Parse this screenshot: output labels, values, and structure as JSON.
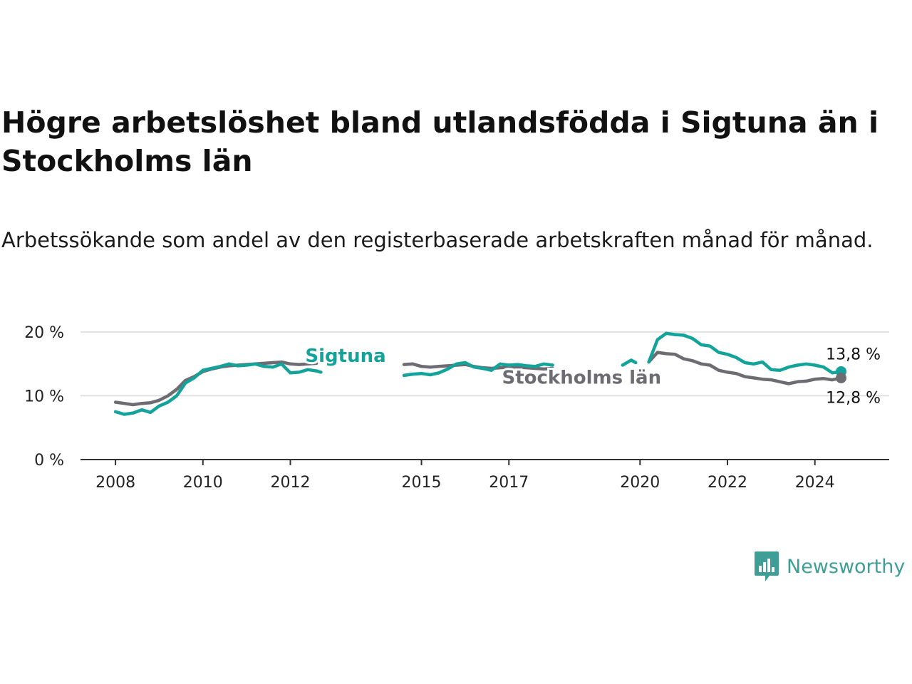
{
  "title": "Högre arbetslöshet bland utlandsfödda i Sigtuna än i Stockholms län",
  "subtitle": "Arbetssökande som andel av den registerbaserade arbetskraften månad för månad.",
  "brand": {
    "name": "Newsworthy"
  },
  "colors": {
    "sigtuna": "#14a39a",
    "stockholm": "#6e6c73",
    "grid": "#d9d9d9",
    "axis": "#333333"
  },
  "chart_data": {
    "type": "line",
    "title": "Högre arbetslöshet bland utlandsfödda i Sigtuna än i Stockholms län",
    "xlabel": "",
    "ylabel": "",
    "ylim": [
      0,
      20
    ],
    "xlim": [
      2007.2,
      2025.7
    ],
    "y_ticks": [
      0,
      10,
      20
    ],
    "y_tick_labels": [
      "0 %",
      "10 %",
      "20 %"
    ],
    "x_ticks": [
      2008,
      2010,
      2012,
      2015,
      2017,
      2020,
      2022,
      2024
    ],
    "x_tick_labels": [
      "2008",
      "2010",
      "2012",
      "2015",
      "2017",
      "2020",
      "2022",
      "2024"
    ],
    "grid": true,
    "series": [
      {
        "name": "Sigtuna",
        "color": "#14a39a",
        "end_label": "13,8 %",
        "segments": [
          {
            "x": [
              2008.0,
              2008.2,
              2008.4,
              2008.6,
              2008.8,
              2009.0,
              2009.2,
              2009.4,
              2009.6,
              2009.8,
              2010.0,
              2010.2,
              2010.4,
              2010.6,
              2010.8,
              2011.0,
              2011.2,
              2011.4,
              2011.6,
              2011.8,
              2012.0,
              2012.2,
              2012.4,
              2012.6,
              2012.7
            ],
            "y": [
              7.5,
              7.1,
              7.3,
              7.8,
              7.4,
              8.4,
              9.0,
              10.0,
              12.0,
              12.8,
              14.0,
              14.3,
              14.6,
              15.0,
              14.7,
              14.8,
              15.0,
              14.6,
              14.5,
              15.0,
              13.6,
              13.7,
              14.1,
              13.9,
              13.7
            ]
          },
          {
            "x": [
              2014.6,
              2014.8,
              2015.0,
              2015.2,
              2015.4,
              2015.6,
              2015.8,
              2016.0,
              2016.2,
              2016.4,
              2016.6,
              2016.8,
              2017.0,
              2017.2,
              2017.4,
              2017.6,
              2017.8,
              2018.0
            ],
            "y": [
              13.2,
              13.4,
              13.5,
              13.3,
              13.6,
              14.2,
              15.0,
              15.2,
              14.5,
              14.3,
              14.0,
              15.0,
              14.8,
              14.9,
              14.7,
              14.6,
              15.0,
              14.8
            ]
          },
          {
            "x": [
              2019.6,
              2019.8,
              2019.9
            ],
            "y": [
              14.8,
              15.6,
              15.2
            ]
          },
          {
            "x": [
              2020.2,
              2020.4,
              2020.6,
              2020.8,
              2021.0,
              2021.2,
              2021.4,
              2021.6,
              2021.8,
              2022.0,
              2022.2,
              2022.4,
              2022.6,
              2022.8,
              2023.0,
              2023.2,
              2023.4,
              2023.6,
              2023.8,
              2024.0,
              2024.2,
              2024.4,
              2024.6
            ],
            "y": [
              15.3,
              18.8,
              19.8,
              19.6,
              19.5,
              19.0,
              18.0,
              17.8,
              16.8,
              16.5,
              16.0,
              15.2,
              15.0,
              15.3,
              14.1,
              14.0,
              14.5,
              14.8,
              15.0,
              14.8,
              14.5,
              13.6,
              13.8
            ]
          }
        ]
      },
      {
        "name": "Stockholms län",
        "color": "#6e6c73",
        "end_label": "12,8 %",
        "segments": [
          {
            "x": [
              2008.0,
              2008.2,
              2008.4,
              2008.6,
              2008.8,
              2009.0,
              2009.2,
              2009.4,
              2009.6,
              2009.8,
              2010.0,
              2010.2,
              2010.4,
              2010.6,
              2010.8,
              2011.0,
              2011.2,
              2011.4,
              2011.6,
              2011.8,
              2012.0,
              2012.2,
              2012.4,
              2012.6
            ],
            "y": [
              9.0,
              8.8,
              8.6,
              8.8,
              8.9,
              9.3,
              10.0,
              11.0,
              12.4,
              13.0,
              13.8,
              14.2,
              14.5,
              14.7,
              14.8,
              14.9,
              15.0,
              15.1,
              15.2,
              15.3,
              15.0,
              14.9,
              15.0,
              15.1
            ]
          },
          {
            "x": [
              2014.6,
              2014.8,
              2015.0,
              2015.2,
              2015.4,
              2015.6,
              2015.8,
              2016.0,
              2016.2,
              2016.4,
              2016.6,
              2016.8,
              2017.0,
              2017.2,
              2017.4,
              2017.6,
              2017.8,
              2018.0
            ],
            "y": [
              14.9,
              15.0,
              14.6,
              14.5,
              14.6,
              14.7,
              14.8,
              14.9,
              14.6,
              14.4,
              14.3,
              14.4,
              14.5,
              14.5,
              14.4,
              14.3,
              14.2,
              14.3
            ]
          },
          {
            "x": [
              2020.2,
              2020.4,
              2020.6,
              2020.8,
              2021.0,
              2021.2,
              2021.4,
              2021.6,
              2021.8,
              2022.0,
              2022.2,
              2022.4,
              2022.6,
              2022.8,
              2023.0,
              2023.2,
              2023.4,
              2023.6,
              2023.8,
              2024.0,
              2024.2,
              2024.4,
              2024.6
            ],
            "y": [
              15.3,
              16.8,
              16.6,
              16.5,
              15.8,
              15.5,
              15.0,
              14.8,
              14.0,
              13.7,
              13.5,
              13.0,
              12.8,
              12.6,
              12.5,
              12.2,
              11.9,
              12.2,
              12.3,
              12.6,
              12.7,
              12.5,
              12.8
            ]
          }
        ]
      }
    ],
    "annotations": [
      {
        "text": "Sigtuna",
        "series": "Sigtuna",
        "x": 2012.7,
        "y": 16.2
      },
      {
        "text": "Stockholms län",
        "series": "Stockholms län",
        "x": 2017.2,
        "y": 12.8
      }
    ]
  }
}
